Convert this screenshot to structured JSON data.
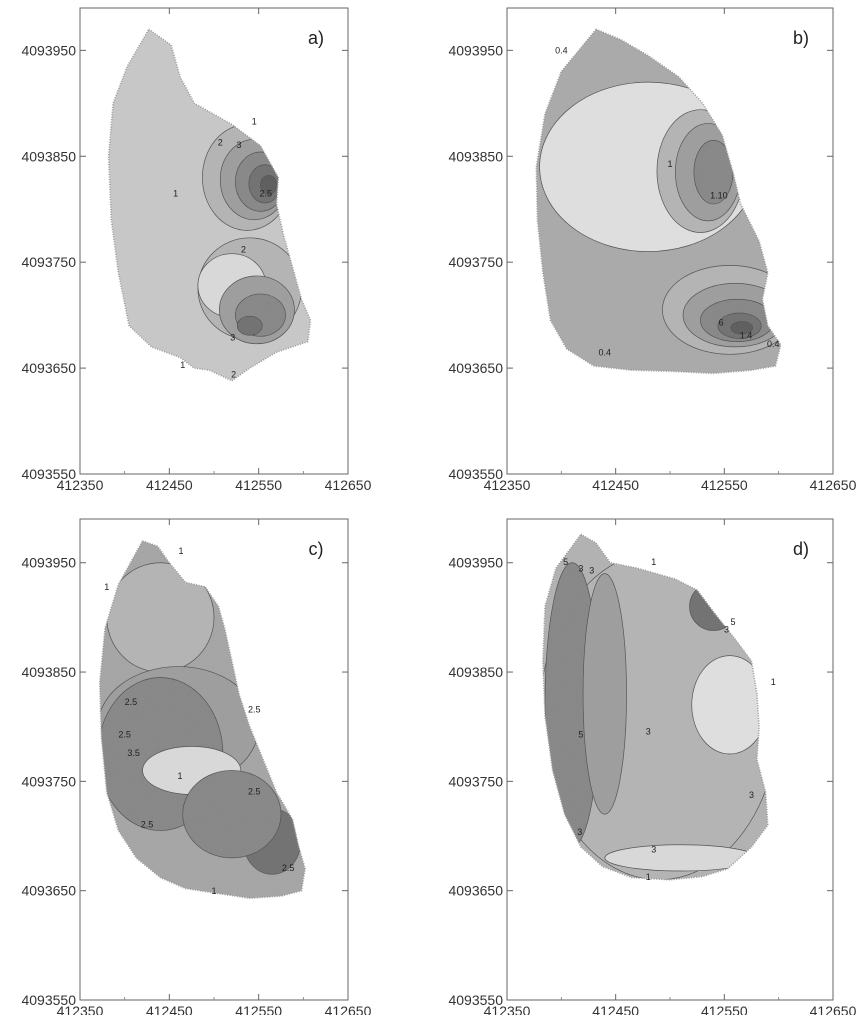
{
  "chart_data": [
    {
      "type": "heatmap",
      "panel_label": "a)",
      "xlim": [
        412350,
        412650
      ],
      "ylim": [
        4093550,
        4093990
      ],
      "x_ticks": [
        "412350",
        "412450",
        "412550",
        "412650"
      ],
      "y_ticks": [
        "4093550",
        "4093650",
        "4093750",
        "4093850",
        "4093950"
      ],
      "boundary": [
        [
          412427,
          4093970
        ],
        [
          412452,
          4093955
        ],
        [
          412462,
          4093925
        ],
        [
          412478,
          4093900
        ],
        [
          412520,
          4093880
        ],
        [
          412552,
          4093860
        ],
        [
          412572,
          4093830
        ],
        [
          412570,
          4093805
        ],
        [
          412578,
          4093775
        ],
        [
          412588,
          4093745
        ],
        [
          412598,
          4093715
        ],
        [
          412608,
          4093695
        ],
        [
          412605,
          4093675
        ],
        [
          412570,
          4093665
        ],
        [
          412540,
          4093650
        ],
        [
          412520,
          4093638
        ],
        [
          412495,
          4093648
        ],
        [
          412478,
          4093650
        ],
        [
          412462,
          4093660
        ],
        [
          412430,
          4093670
        ],
        [
          412405,
          4093690
        ],
        [
          412393,
          4093740
        ],
        [
          412385,
          4093790
        ],
        [
          412382,
          4093850
        ],
        [
          412387,
          4093900
        ],
        [
          412403,
          4093935
        ],
        [
          412427,
          4093970
        ]
      ],
      "blobs": [
        {
          "cx": 412537,
          "cy": 4093830,
          "rx": 50,
          "ry": 50,
          "level": 1
        },
        {
          "cx": 412545,
          "cy": 4093828,
          "rx": 38,
          "ry": 38,
          "level": 2
        },
        {
          "cx": 412552,
          "cy": 4093826,
          "rx": 28,
          "ry": 28,
          "level": 3
        },
        {
          "cx": 412557,
          "cy": 4093824,
          "rx": 18,
          "ry": 18,
          "level": 4
        },
        {
          "cx": 412561,
          "cy": 4093823,
          "rx": 9,
          "ry": 9,
          "level": 5
        },
        {
          "cx": 412540,
          "cy": 4093725,
          "rx": 58,
          "ry": 48,
          "level": 1
        },
        {
          "cx": 412520,
          "cy": 4093728,
          "rx": 38,
          "ry": 30,
          "level": 0
        },
        {
          "cx": 412548,
          "cy": 4093705,
          "rx": 42,
          "ry": 32,
          "level": 2
        },
        {
          "cx": 412552,
          "cy": 4093700,
          "rx": 28,
          "ry": 20,
          "level": 3
        },
        {
          "cx": 412540,
          "cy": 4093690,
          "rx": 14,
          "ry": 9,
          "level": 4
        }
      ],
      "contour_labels": [
        {
          "x": 412545,
          "y": 4093880,
          "text": "1"
        },
        {
          "x": 412507,
          "y": 4093860,
          "text": "2"
        },
        {
          "x": 412528,
          "y": 4093858,
          "text": "3"
        },
        {
          "x": 412457,
          "y": 4093812,
          "text": "1"
        },
        {
          "x": 412533,
          "y": 4093759,
          "text": "2"
        },
        {
          "x": 412521,
          "y": 4093676,
          "text": "3"
        },
        {
          "x": 412522,
          "y": 4093641,
          "text": "2"
        },
        {
          "x": 412558,
          "y": 4093812,
          "text": "2.5"
        },
        {
          "x": 412465,
          "y": 4093650,
          "text": "1"
        }
      ]
    },
    {
      "type": "heatmap",
      "panel_label": "b)",
      "xlim": [
        412350,
        412650
      ],
      "ylim": [
        4093550,
        4093990
      ],
      "x_ticks": [
        "412350",
        "412450",
        "412550",
        "412650"
      ],
      "y_ticks": [
        "4093550",
        "4093650",
        "4093750",
        "4093850",
        "4093950"
      ],
      "boundary": [
        [
          412432,
          4093970
        ],
        [
          412455,
          4093960
        ],
        [
          412480,
          4093945
        ],
        [
          412508,
          4093925
        ],
        [
          412530,
          4093900
        ],
        [
          412548,
          4093870
        ],
        [
          412558,
          4093835
        ],
        [
          412565,
          4093805
        ],
        [
          412582,
          4093770
        ],
        [
          412590,
          4093740
        ],
        [
          412585,
          4093715
        ],
        [
          412590,
          4093690
        ],
        [
          412602,
          4093672
        ],
        [
          412597,
          4093652
        ],
        [
          412575,
          4093648
        ],
        [
          412540,
          4093645
        ],
        [
          412500,
          4093647
        ],
        [
          412465,
          4093648
        ],
        [
          412430,
          4093652
        ],
        [
          412405,
          4093668
        ],
        [
          412390,
          4093695
        ],
        [
          412383,
          4093740
        ],
        [
          412378,
          4093790
        ],
        [
          412377,
          4093840
        ],
        [
          412385,
          4093890
        ],
        [
          412400,
          4093930
        ],
        [
          412432,
          4093970
        ]
      ],
      "blobs": [
        {
          "cx": 412480,
          "cy": 4093840,
          "rx": 100,
          "ry": 80,
          "level": -1
        },
        {
          "cx": 412528,
          "cy": 4093836,
          "rx": 40,
          "ry": 58,
          "level": 1
        },
        {
          "cx": 412535,
          "cy": 4093835,
          "rx": 30,
          "ry": 46,
          "level": 2
        },
        {
          "cx": 412540,
          "cy": 4093835,
          "rx": 18,
          "ry": 30,
          "level": 3
        },
        {
          "cx": 412555,
          "cy": 4093705,
          "rx": 62,
          "ry": 42,
          "level": 1
        },
        {
          "cx": 412560,
          "cy": 4093700,
          "rx": 48,
          "ry": 30,
          "level": 2
        },
        {
          "cx": 412562,
          "cy": 4093695,
          "rx": 34,
          "ry": 20,
          "level": 3
        },
        {
          "cx": 412564,
          "cy": 4093690,
          "rx": 20,
          "ry": 12,
          "level": 4
        },
        {
          "cx": 412566,
          "cy": 4093688,
          "rx": 10,
          "ry": 6,
          "level": 5
        }
      ],
      "contour_labels": [
        {
          "x": 412400,
          "y": 4093947,
          "text": "0.4"
        },
        {
          "x": 412545,
          "y": 4093810,
          "text": "1.10"
        },
        {
          "x": 412570,
          "y": 4093678,
          "text": "1.4"
        },
        {
          "x": 412547,
          "y": 4093690,
          "text": "6"
        },
        {
          "x": 412595,
          "y": 4093670,
          "text": "0.4"
        },
        {
          "x": 412440,
          "y": 4093662,
          "text": "0.4"
        },
        {
          "x": 412500,
          "y": 4093840,
          "text": "1"
        }
      ]
    },
    {
      "type": "heatmap",
      "panel_label": "c)",
      "xlim": [
        412350,
        412650
      ],
      "ylim": [
        4093550,
        4093990
      ],
      "x_ticks": [
        "412350",
        "412450",
        "412550",
        "412650"
      ],
      "y_ticks": [
        "4093550",
        "4093650",
        "4093750",
        "4093850",
        "4093950"
      ],
      "boundary": [
        [
          412420,
          4093970
        ],
        [
          412437,
          4093965
        ],
        [
          412450,
          4093950
        ],
        [
          412468,
          4093932
        ],
        [
          412490,
          4093928
        ],
        [
          412505,
          4093910
        ],
        [
          412512,
          4093890
        ],
        [
          412520,
          4093860
        ],
        [
          412528,
          4093830
        ],
        [
          412540,
          4093800
        ],
        [
          412555,
          4093770
        ],
        [
          412570,
          4093740
        ],
        [
          412588,
          4093715
        ],
        [
          412595,
          4093690
        ],
        [
          412602,
          4093670
        ],
        [
          412598,
          4093650
        ],
        [
          412575,
          4093645
        ],
        [
          412540,
          4093643
        ],
        [
          412500,
          4093648
        ],
        [
          412468,
          4093652
        ],
        [
          412440,
          4093662
        ],
        [
          412413,
          4093680
        ],
        [
          412393,
          4093705
        ],
        [
          412380,
          4093740
        ],
        [
          412374,
          4093790
        ],
        [
          412372,
          4093840
        ],
        [
          412378,
          4093890
        ],
        [
          412393,
          4093930
        ],
        [
          412420,
          4093970
        ]
      ],
      "blobs": [
        {
          "cx": 412440,
          "cy": 4093900,
          "rx": 60,
          "ry": 50,
          "level": 1
        },
        {
          "cx": 412460,
          "cy": 4093800,
          "rx": 90,
          "ry": 55,
          "level": 2
        },
        {
          "cx": 412440,
          "cy": 4093775,
          "rx": 70,
          "ry": 70,
          "level": 3
        },
        {
          "cx": 412475,
          "cy": 4093760,
          "rx": 55,
          "ry": 22,
          "level": 0
        },
        {
          "cx": 412565,
          "cy": 4093695,
          "rx": 32,
          "ry": 30,
          "level": 4
        },
        {
          "cx": 412520,
          "cy": 4093720,
          "rx": 55,
          "ry": 40,
          "level": 3
        }
      ],
      "contour_labels": [
        {
          "x": 412463,
          "y": 4093958,
          "text": "1"
        },
        {
          "x": 412380,
          "y": 4093925,
          "text": "1"
        },
        {
          "x": 412407,
          "y": 4093820,
          "text": "2.5"
        },
        {
          "x": 412400,
          "y": 4093790,
          "text": "2.5"
        },
        {
          "x": 412410,
          "y": 4093773,
          "text": "3.5"
        },
        {
          "x": 412462,
          "y": 4093752,
          "text": "1"
        },
        {
          "x": 412545,
          "y": 4093813,
          "text": "2.5"
        },
        {
          "x": 412545,
          "y": 4093738,
          "text": "2.5"
        },
        {
          "x": 412425,
          "y": 4093708,
          "text": "2.5"
        },
        {
          "x": 412583,
          "y": 4093668,
          "text": "2.5"
        },
        {
          "x": 412500,
          "y": 4093647,
          "text": "1"
        }
      ]
    },
    {
      "type": "heatmap",
      "panel_label": "d)",
      "xlim": [
        412350,
        412650
      ],
      "ylim": [
        4093550,
        4093990
      ],
      "x_ticks": [
        "412350",
        "412450",
        "412550",
        "412650"
      ],
      "y_ticks": [
        "4093550",
        "4093650",
        "4093750",
        "4093850",
        "4093950"
      ],
      "boundary": [
        [
          412418,
          4093976
        ],
        [
          412432,
          4093968
        ],
        [
          412445,
          4093950
        ],
        [
          412470,
          4093945
        ],
        [
          412505,
          4093935
        ],
        [
          412525,
          4093925
        ],
        [
          412540,
          4093905
        ],
        [
          412560,
          4093880
        ],
        [
          412575,
          4093860
        ],
        [
          412580,
          4093830
        ],
        [
          412582,
          4093800
        ],
        [
          412580,
          4093770
        ],
        [
          412588,
          4093740
        ],
        [
          412590,
          4093710
        ],
        [
          412575,
          4093690
        ],
        [
          412553,
          4093670
        ],
        [
          412530,
          4093663
        ],
        [
          412500,
          4093660
        ],
        [
          412465,
          4093662
        ],
        [
          412438,
          4093672
        ],
        [
          412418,
          4093690
        ],
        [
          412403,
          4093720
        ],
        [
          412392,
          4093760
        ],
        [
          412385,
          4093810
        ],
        [
          412383,
          4093860
        ],
        [
          412385,
          4093910
        ],
        [
          412395,
          4093945
        ],
        [
          412418,
          4093976
        ]
      ],
      "blobs": [
        {
          "cx": 412490,
          "cy": 4093810,
          "rx": 110,
          "ry": 150,
          "level": 1
        },
        {
          "cx": 412410,
          "cy": 4093820,
          "rx": 25,
          "ry": 130,
          "level": 3
        },
        {
          "cx": 412440,
          "cy": 4093830,
          "rx": 20,
          "ry": 110,
          "level": 2
        },
        {
          "cx": 412540,
          "cy": 4093910,
          "rx": 22,
          "ry": 22,
          "level": 4
        },
        {
          "cx": 412555,
          "cy": 4093820,
          "rx": 35,
          "ry": 45,
          "level": -1
        },
        {
          "cx": 412510,
          "cy": 4093680,
          "rx": 70,
          "ry": 12,
          "level": 0
        }
      ],
      "contour_labels": [
        {
          "x": 412404,
          "y": 4093948,
          "text": "5"
        },
        {
          "x": 412418,
          "y": 4093942,
          "text": "3"
        },
        {
          "x": 412428,
          "y": 4093940,
          "text": "3"
        },
        {
          "x": 412485,
          "y": 4093948,
          "text": "1"
        },
        {
          "x": 412558,
          "y": 4093893,
          "text": "5"
        },
        {
          "x": 412552,
          "y": 4093886,
          "text": "3"
        },
        {
          "x": 412595,
          "y": 4093838,
          "text": "1"
        },
        {
          "x": 412418,
          "y": 4093790,
          "text": "5"
        },
        {
          "x": 412480,
          "y": 4093793,
          "text": "3"
        },
        {
          "x": 412575,
          "y": 4093735,
          "text": "3"
        },
        {
          "x": 412485,
          "y": 4093685,
          "text": "3"
        },
        {
          "x": 412417,
          "y": 4093701,
          "text": "3"
        },
        {
          "x": 412480,
          "y": 4093660,
          "text": "1"
        }
      ]
    }
  ]
}
